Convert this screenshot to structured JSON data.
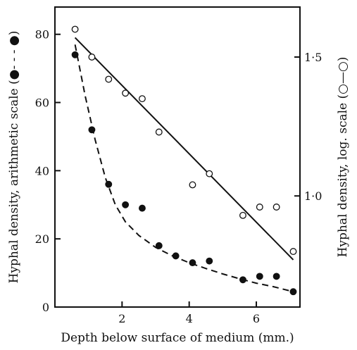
{
  "chart_data": {
    "type": "scatter",
    "title": "",
    "xlabel": "Depth below surface of medium (mm.)",
    "ylabel_left": "Hyphal density, arithmetic scale (●- - - ●)",
    "ylabel_right": "Hyphal density, log. scale (○—○)",
    "xlim": [
      0,
      7.3
    ],
    "ylim_left": [
      0,
      88
    ],
    "ylim_right_log": [
      0.6,
      1.68
    ],
    "x_ticks": [
      {
        "value": 2,
        "label": "2"
      },
      {
        "value": 4,
        "label": "4"
      },
      {
        "value": 6,
        "label": "6"
      }
    ],
    "y_left_ticks": [
      {
        "value": 0,
        "label": "0"
      },
      {
        "value": 20,
        "label": "20"
      },
      {
        "value": 40,
        "label": "40"
      },
      {
        "value": 60,
        "label": "60"
      },
      {
        "value": 80,
        "label": "80"
      }
    ],
    "y_right_ticks": [
      {
        "value": 1.0,
        "label": "1·0"
      },
      {
        "value": 1.5,
        "label": "1·5"
      }
    ],
    "grid": false,
    "series": [
      {
        "marker": "filled-circle",
        "axis": "left",
        "x": [
          0.6,
          1.1,
          1.6,
          2.1,
          2.6,
          3.1,
          3.6,
          4.1,
          4.6,
          5.6,
          6.1,
          6.6,
          7.1
        ],
        "y": [
          74,
          52,
          36,
          30,
          29,
          18,
          15,
          13,
          13.5,
          8,
          9,
          9,
          4.5
        ],
        "fit": {
          "style": "dashed",
          "x": [
            0.6,
            0.9,
            1.2,
            1.5,
            1.8,
            2.1,
            2.5,
            3.0,
            3.5,
            4.0,
            4.5,
            5.0,
            5.5,
            6.0,
            6.5,
            7.1
          ],
          "y": [
            77,
            62,
            49,
            38,
            30,
            25,
            21,
            17.5,
            15,
            13,
            11.3,
            9.7,
            8.3,
            7,
            6,
            4.5
          ]
        }
      },
      {
        "marker": "open-circle",
        "axis": "right",
        "x": [
          0.6,
          1.1,
          1.6,
          2.1,
          2.6,
          3.1,
          4.1,
          4.6,
          5.6,
          6.1,
          6.6,
          7.1
        ],
        "y": [
          1.6,
          1.5,
          1.42,
          1.37,
          1.35,
          1.23,
          1.04,
          1.08,
          0.93,
          0.96,
          0.96,
          0.8
        ],
        "fit": {
          "style": "solid",
          "x": [
            0.6,
            7.1
          ],
          "y": [
            1.57,
            0.77
          ]
        }
      }
    ]
  }
}
